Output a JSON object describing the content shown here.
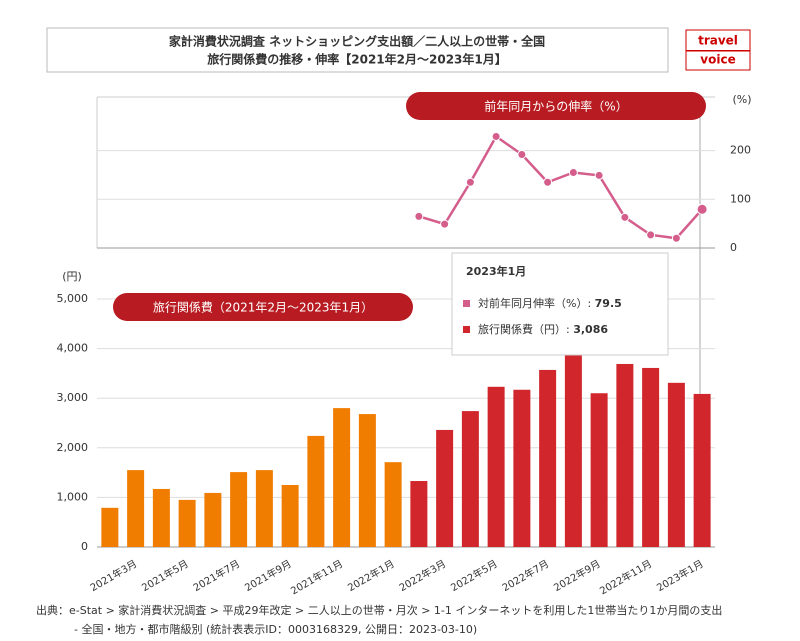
{
  "header": {
    "title_lines": [
      "家計消費状況調査 ネットショッピング支出額／二人以上の世帯・全国",
      "旅行関係費の推移・伸率【2021年2月～2023年1月】"
    ],
    "logo": [
      "travel",
      "voice"
    ]
  },
  "chart_data": [
    {
      "type": "line",
      "unit": "(%)",
      "categories": [
        null,
        "2021年3月",
        null,
        "2021年5月",
        null,
        "2021年7月",
        null,
        "2021年9月",
        null,
        "2021年11月",
        null,
        "2022年1月",
        null,
        "2022年3月",
        null,
        "2022年5月",
        null,
        "2022年7月",
        null,
        "2022年9月",
        null,
        "2022年11月",
        null,
        "2023年1月"
      ],
      "series": [
        {
          "name": "前年同月からの伸率（%）",
          "color": "#d45d8c",
          "values": [
            null,
            null,
            null,
            null,
            null,
            null,
            null,
            null,
            null,
            null,
            null,
            null,
            65,
            49,
            135,
            229,
            192,
            135,
            155,
            149,
            63,
            27,
            20,
            79.5
          ]
        }
      ],
      "ylim": [
        0,
        310
      ],
      "yticks": [
        0,
        100,
        200
      ],
      "grid": true,
      "axis_side": "right"
    },
    {
      "type": "bar",
      "unit": "(円)",
      "categories": [
        null,
        "2021年3月",
        null,
        "2021年5月",
        null,
        "2021年7月",
        null,
        "2021年9月",
        null,
        "2021年11月",
        null,
        "2022年1月",
        null,
        "2022年3月",
        null,
        "2022年5月",
        null,
        "2022年7月",
        null,
        "2022年9月",
        null,
        "2022年11月",
        null,
        "2023年1月"
      ],
      "series": [
        {
          "name": "旅行関係費（2021年2月～2023年1月）",
          "color": "#d1262b",
          "colors": [
            "#f07c00",
            "#f07c00",
            "#f07c00",
            "#f07c00",
            "#f07c00",
            "#f07c00",
            "#f07c00",
            "#f07c00",
            "#f07c00",
            "#f07c00",
            "#f07c00",
            "#f07c00",
            "#d1262b",
            "#d1262b",
            "#d1262b",
            "#d1262b",
            "#d1262b",
            "#d1262b",
            "#d1262b",
            "#d1262b",
            "#d1262b",
            "#d1262b",
            "#d1262b",
            "#d1262b"
          ],
          "values": [
            790,
            1550,
            1170,
            950,
            1090,
            1510,
            1550,
            1250,
            2240,
            2800,
            2680,
            1710,
            1330,
            2360,
            2740,
            3230,
            3170,
            3570,
            3930,
            3100,
            3690,
            3610,
            3310,
            3086
          ]
        }
      ],
      "ylim": [
        0,
        5000
      ],
      "yticks": [
        0,
        {
          "value": 1000,
          "label": "1,000"
        },
        {
          "value": 2000,
          "label": "2,000"
        },
        {
          "value": 3000,
          "label": "3,000"
        },
        {
          "value": 4000,
          "label": "4,000"
        },
        {
          "value": 5000,
          "label": "5,000"
        }
      ],
      "grid": true,
      "axis_side": "left"
    }
  ],
  "tooltip": {
    "title": "2023年1月",
    "items": [
      {
        "label": "対前年同月伸率（%）: ",
        "value": "79.5",
        "color": "#d45d8c"
      },
      {
        "label": "旅行関係費（円）: ",
        "value": "3,086",
        "color": "#d1262b"
      }
    ]
  },
  "source": [
    "出典：e-Stat > 家計消費状況調査 > 平成29年改定 > 二人以上の世帯・月次 > 1-1 インターネットを利用した1世帯当たり1か月間の支出",
    "- 全国・地方・都市階級別 (統計表表示ID：0003168329, 公開日：2023-03-10)"
  ]
}
